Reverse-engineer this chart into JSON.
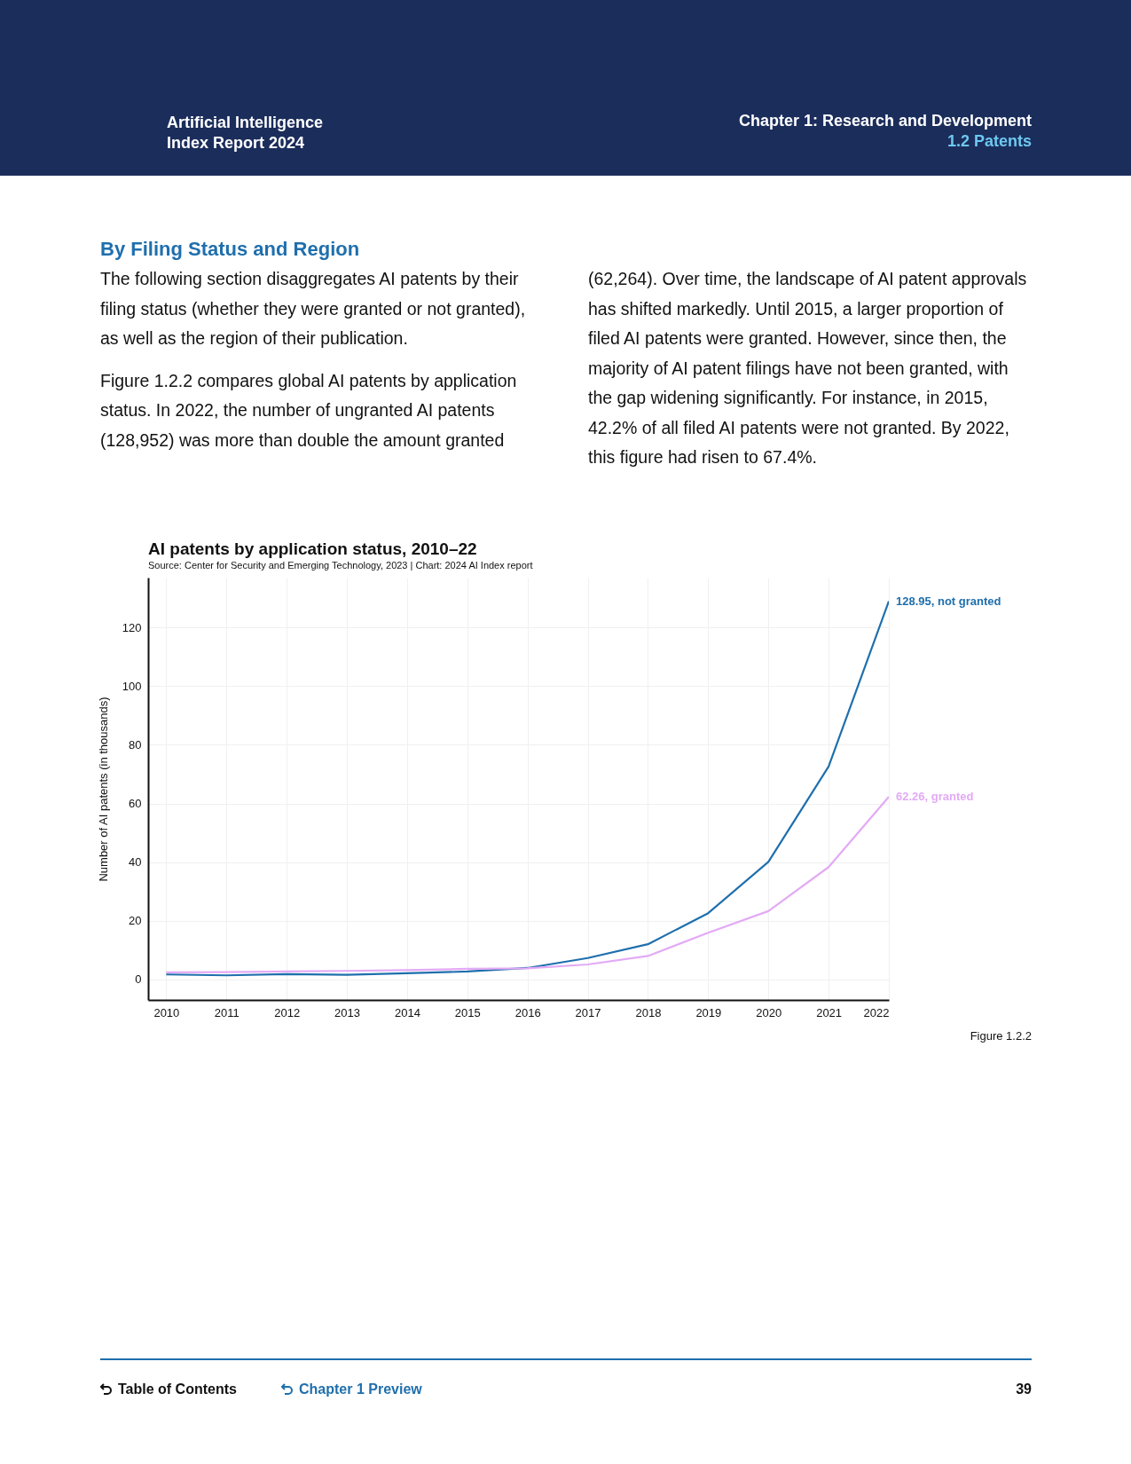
{
  "chart_data": {
    "type": "line",
    "title": "AI patents by application status, 2010–22",
    "subtitle": "Source: Center for Security and Emerging Technology, 2023 | Chart: 2024 AI Index report",
    "ylabel": "Number of AI patents (in thousands)",
    "x": [
      2010,
      2011,
      2012,
      2013,
      2014,
      2015,
      2016,
      2017,
      2018,
      2019,
      2020,
      2021,
      2022
    ],
    "series": [
      {
        "color": "#1f6fad",
        "values": [
          1.7,
          1.4,
          1.8,
          1.6,
          2.1,
          2.7,
          3.9,
          7.3,
          12.0,
          22.6,
          40.1,
          72.6,
          128.95
        ]
      },
      {
        "color": "#e3aaf5",
        "values": [
          2.4,
          2.5,
          2.7,
          2.9,
          3.2,
          3.6,
          3.8,
          5.1,
          8.0,
          15.9,
          23.3,
          38.3,
          62.26
        ]
      }
    ],
    "xlim": [
      2009.7,
      2022
    ],
    "ylim": [
      -7,
      137
    ],
    "xticks": [
      2010,
      2011,
      2012,
      2013,
      2014,
      2015,
      2016,
      2017,
      2018,
      2019,
      2020,
      2021,
      2022
    ],
    "yticks": [
      0,
      20,
      40,
      60,
      80,
      100,
      120
    ],
    "grid": true,
    "marker": "none",
    "line_style": "solid",
    "annotations": [
      "Artificial Intelligence",
      "Index Report 2024",
      "Chapter 1: Research and Development",
      "1.2 Patents",
      "By Filing Status and Region",
      "The following section disaggregates AI patents by their filing status (whether they were granted or not granted), as well as the region of their publication.",
      "Figure 1.2.2 compares global AI patents by application status. In 2022, the number of ungranted AI patents (128,952) was more than double the amount granted (62,264). Over time, the landscape of AI patent approvals has shifted markedly. Until 2015, a larger proportion of filed AI patents were granted. However, since then, the majority of AI patent filings have not been granted, with the gap widening significantly. For instance, in 2015, 42.2% of all filed AI patents were not granted. By 2022, this figure had risen to 67.4%.",
      "Figure 1.2.2",
      "Table of Contents",
      "Chapter 1 Preview",
      "39",
      {
        "text": "128.95, not granted",
        "x": 2022,
        "y": 128.95
      },
      {
        "text": "62.26, granted",
        "x": 2022,
        "y": 62.26
      }
    ]
  }
}
